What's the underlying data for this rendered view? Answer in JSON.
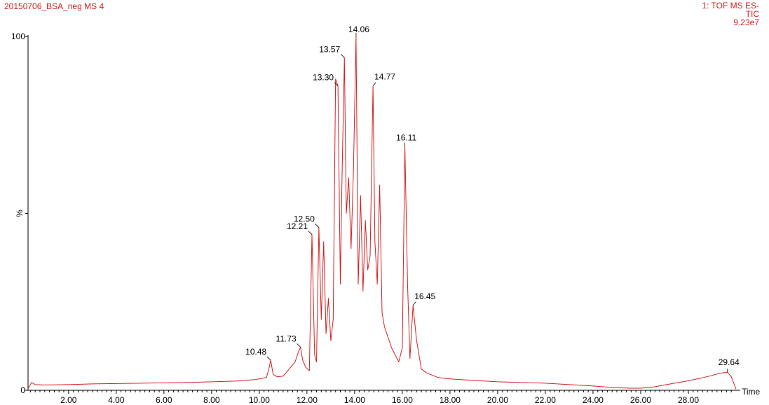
{
  "header": {
    "left_title": "20150706_BSA_neg MS 4",
    "right_lines": [
      "1: TOF MS ES-",
      "TIC",
      "9.23e7"
    ]
  },
  "chart_data": {
    "type": "line",
    "xlabel": "Time",
    "ylabel": "%",
    "xlim": [
      0.3,
      30.0
    ],
    "ylim": [
      0,
      100
    ],
    "x_tick_labels": [
      "2.00",
      "4.00",
      "6.00",
      "8.00",
      "10.00",
      "12.00",
      "14.00",
      "16.00",
      "18.00",
      "20.00",
      "22.00",
      "24.00",
      "26.00",
      "28.00"
    ],
    "y_tick_labels": [
      "0",
      "100"
    ],
    "series": [
      {
        "color": "#d42020",
        "x": [
          0.3,
          0.45,
          0.6,
          1.0,
          2.0,
          3.0,
          4.0,
          5.0,
          6.0,
          7.0,
          8.0,
          9.0,
          9.8,
          10.3,
          10.4,
          10.48,
          10.58,
          10.75,
          11.0,
          11.5,
          11.65,
          11.73,
          11.82,
          11.95,
          12.1,
          12.21,
          12.32,
          12.4,
          12.5,
          12.6,
          12.7,
          12.8,
          12.9,
          13.0,
          13.1,
          13.2,
          13.3,
          13.4,
          13.47,
          13.57,
          13.65,
          13.75,
          13.85,
          13.95,
          14.06,
          14.15,
          14.25,
          14.35,
          14.45,
          14.55,
          14.65,
          14.77,
          14.85,
          14.95,
          15.05,
          15.15,
          15.25,
          15.4,
          15.55,
          15.7,
          15.85,
          16.0,
          16.11,
          16.22,
          16.32,
          16.45,
          16.6,
          16.8,
          17.0,
          17.5,
          18.0,
          19.0,
          20.0,
          21.0,
          22.0,
          23.0,
          24.0,
          24.8,
          25.5,
          26.0,
          26.5,
          27.0,
          27.5,
          28.0,
          28.5,
          29.0,
          29.3,
          29.64,
          29.8,
          30.0
        ],
        "y": [
          0.5,
          2.2,
          1.6,
          1.5,
          1.6,
          1.8,
          1.9,
          2.0,
          2.1,
          2.2,
          2.4,
          2.6,
          3.0,
          3.6,
          6.0,
          8.5,
          4.5,
          3.8,
          4.0,
          8.0,
          11.0,
          12.2,
          8.5,
          6.5,
          5.5,
          44.0,
          10.0,
          8.0,
          46.0,
          20.0,
          42.0,
          16.0,
          26.0,
          14.0,
          20.0,
          88.0,
          86.0,
          30.0,
          60.0,
          94.0,
          50.0,
          60.0,
          40.0,
          62.0,
          100.0,
          30.0,
          55.0,
          28.0,
          48.0,
          34.0,
          38.0,
          86.0,
          42.0,
          30.0,
          58.0,
          22.0,
          18.0,
          15.0,
          12.0,
          10.0,
          8.0,
          12.0,
          69.0,
          30.0,
          9.0,
          24.0,
          14.0,
          6.0,
          5.0,
          3.6,
          3.2,
          2.8,
          2.4,
          2.2,
          2.0,
          1.6,
          1.2,
          0.8,
          0.6,
          0.6,
          0.9,
          1.5,
          2.1,
          2.7,
          3.4,
          4.2,
          4.8,
          5.1,
          3.8,
          0.3
        ]
      }
    ],
    "peak_labels": [
      {
        "label": "10.48",
        "x": 10.48,
        "y": 8.5
      },
      {
        "label": "11.73",
        "x": 11.73,
        "y": 12.2
      },
      {
        "label": "12.21",
        "x": 12.21,
        "y": 44.0
      },
      {
        "label": "12.50",
        "x": 12.5,
        "y": 46.0
      },
      {
        "label": "13.30",
        "x": 13.3,
        "y": 86.0
      },
      {
        "label": "13.57",
        "x": 13.57,
        "y": 94.0
      },
      {
        "label": "14.06",
        "x": 14.06,
        "y": 100.0
      },
      {
        "label": "14.77",
        "x": 14.77,
        "y": 86.0
      },
      {
        "label": "16.11",
        "x": 16.11,
        "y": 69.0
      },
      {
        "label": "16.45",
        "x": 16.45,
        "y": 24.0
      },
      {
        "label": "29.64",
        "x": 29.64,
        "y": 5.1
      }
    ]
  }
}
